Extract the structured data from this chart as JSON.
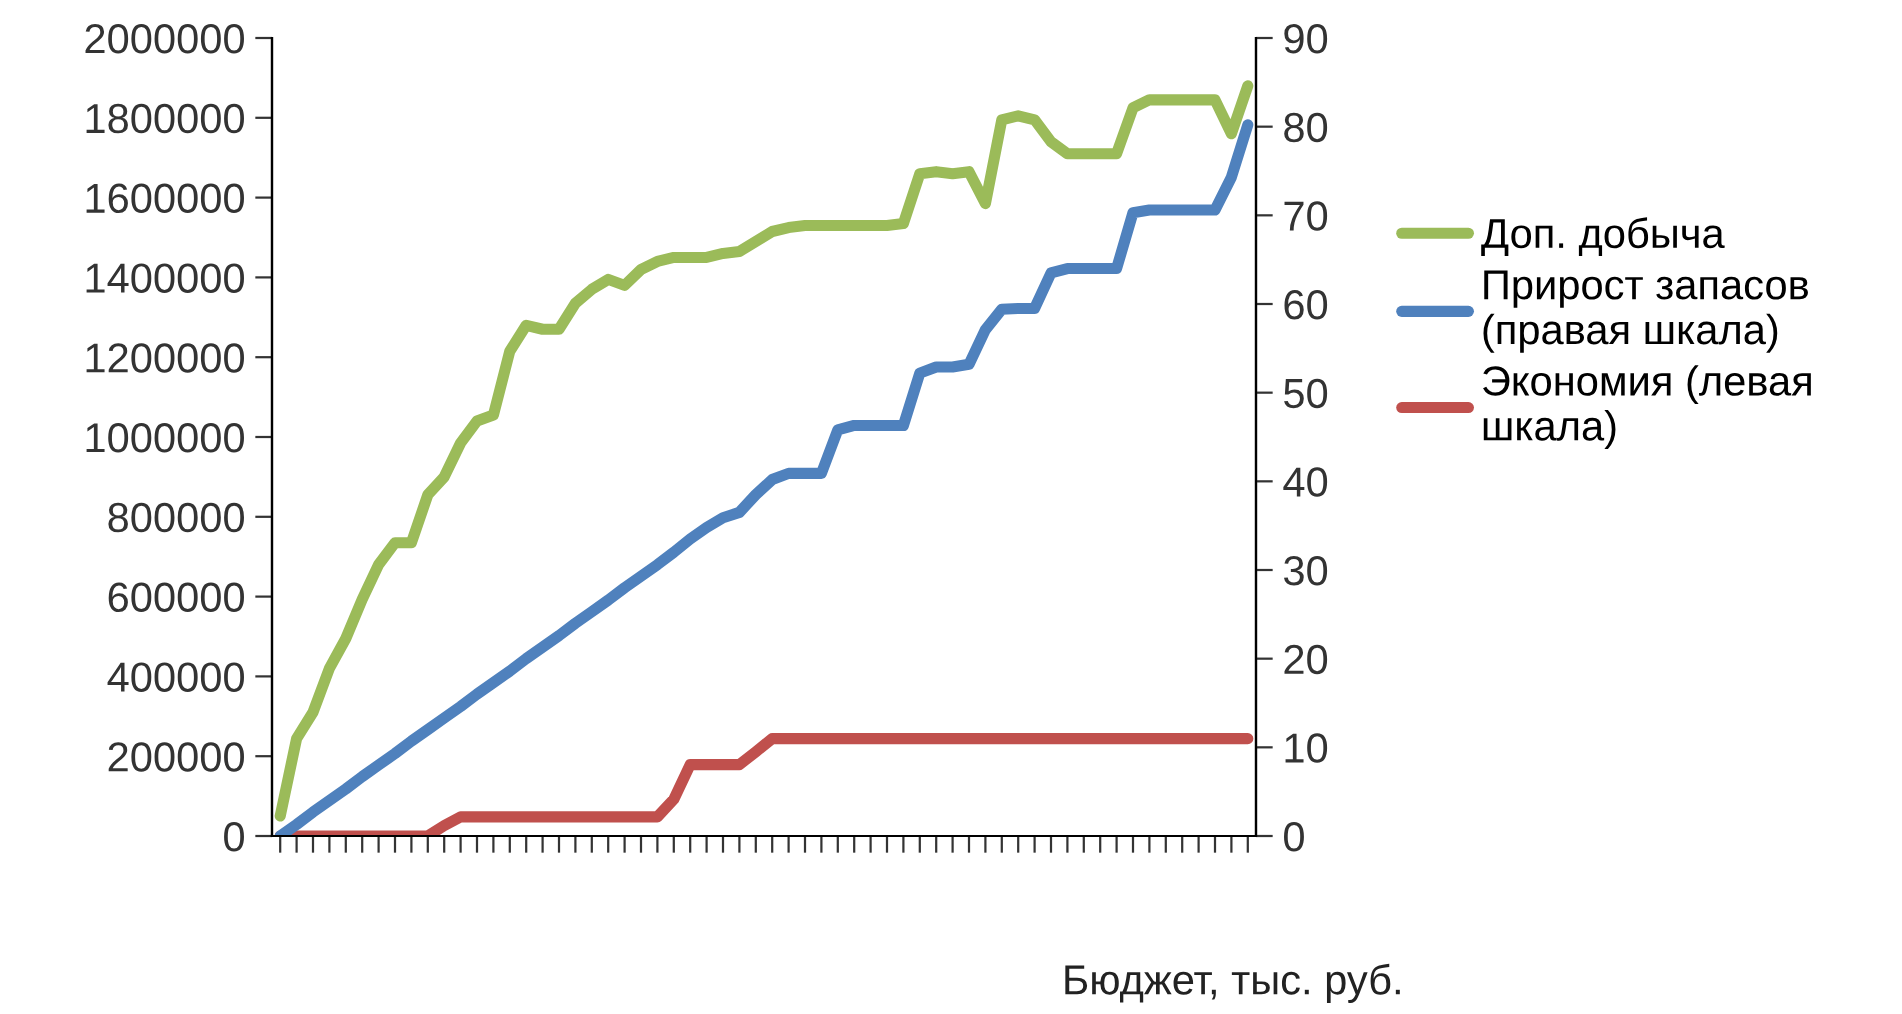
{
  "chart_data": {
    "type": "line",
    "xlabel": "Бюджет, тыс. руб.",
    "categories": [
      null,
      null,
      null,
      null,
      null,
      null,
      null,
      null,
      null,
      null,
      null,
      null,
      null,
      null,
      null,
      null,
      null,
      null,
      null,
      null,
      null,
      null,
      null,
      null,
      null,
      null,
      null,
      null,
      null,
      null,
      null,
      null,
      null,
      null,
      null,
      null,
      null,
      null,
      null,
      null,
      null,
      null,
      null,
      null,
      null,
      null,
      null,
      null,
      null,
      null,
      null,
      null,
      null,
      null,
      null,
      null,
      null,
      null,
      null,
      null
    ],
    "series": [
      {
        "name": "Доп. добыча",
        "color": "#9bbb59",
        "values": [
          50000,
          244000,
          310000,
          420000,
          495000,
          593000,
          680000,
          735000,
          735000,
          855000,
          900000,
          985000,
          1040000,
          1055000,
          1215000,
          1280000,
          1270000,
          1270000,
          1335000,
          1370000,
          1395000,
          1380000,
          1420000,
          1440000,
          1450000,
          1450000,
          1450000,
          1460000,
          1465000,
          1490000,
          1515000,
          1525000,
          1530000,
          1530000,
          1530000,
          1530000,
          1530000,
          1530000,
          1535000,
          1660000,
          1665000,
          1660000,
          1665000,
          1585000,
          1795000,
          1805000,
          1795000,
          1740000,
          1710000,
          1710000,
          1710000,
          1710000,
          1825000,
          1845000,
          1845000,
          1845000,
          1845000,
          1845000,
          1760000,
          1880000
        ]
      },
      {
        "name": "Прирост запасов (правая шкала)",
        "color": "#4f81bd",
        "axis": "y2",
        "values": [
          0,
          1.3,
          2.7,
          4,
          5.3,
          6.7,
          8,
          9.3,
          10.7,
          12,
          13.3,
          14.6,
          16,
          17.3,
          18.6,
          20,
          21.3,
          22.6,
          24,
          25.3,
          26.6,
          28,
          29.3,
          30.6,
          32,
          33.5,
          34.8,
          35.9,
          36.5,
          38.5,
          40.2,
          40.9,
          40.9,
          40.9,
          45.8,
          46.3,
          46.3,
          46.3,
          46.3,
          52.2,
          52.9,
          52.9,
          53.2,
          57.1,
          59.4,
          59.5,
          59.5,
          63.5,
          64,
          64,
          64,
          64,
          70.3,
          70.6,
          70.6,
          70.6,
          70.6,
          70.6,
          74.3,
          80.2
        ]
      },
      {
        "name": "Экономия (левая шкала)",
        "color": "#c0504d",
        "values": [
          0,
          0,
          0,
          0,
          0,
          0,
          0,
          0,
          0,
          0,
          26000,
          48000,
          48000,
          48000,
          48000,
          48000,
          48000,
          48000,
          48000,
          48000,
          48000,
          48000,
          48000,
          48000,
          92000,
          179000,
          179000,
          179000,
          179000,
          211000,
          244000,
          244000,
          244000,
          244000,
          244000,
          244000,
          244000,
          244000,
          244000,
          244000,
          244000,
          244000,
          244000,
          244000,
          244000,
          244000,
          244000,
          244000,
          244000,
          244000,
          244000,
          244000,
          244000,
          244000,
          244000,
          244000,
          244000,
          244000,
          244000,
          244000
        ]
      }
    ],
    "ylim": [
      0,
      2000000
    ],
    "yticks": [
      0,
      200000,
      400000,
      600000,
      800000,
      1000000,
      1200000,
      1400000,
      1600000,
      1800000,
      2000000
    ],
    "y2lim": [
      0,
      90
    ],
    "y2ticks": [
      0,
      10,
      20,
      30,
      40,
      50,
      60,
      70,
      80,
      90
    ],
    "grid": false,
    "legend": "right",
    "line_style": "solid",
    "marker": "none"
  }
}
